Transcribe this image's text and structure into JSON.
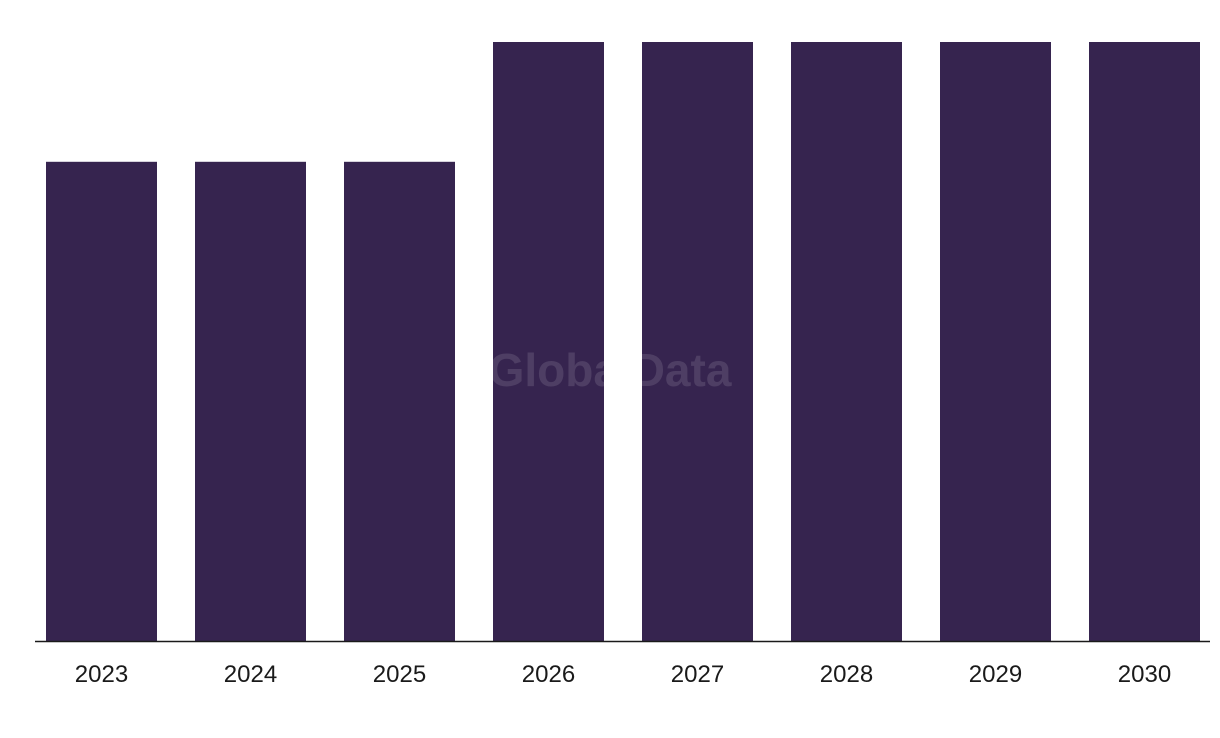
{
  "chart_data": {
    "type": "bar",
    "categories": [
      "2023",
      "2024",
      "2025",
      "2026",
      "2027",
      "2028",
      "2029",
      "2030"
    ],
    "values": [
      4,
      4,
      4,
      5,
      5,
      5,
      5,
      5
    ],
    "ylim": [
      0,
      5
    ],
    "grid": false,
    "bar_color": "#36244f",
    "axis_color": "#1a1a1a",
    "tick_label_color": "#1a1a1a"
  },
  "watermark": {
    "text": "GlobalData",
    "color": "#ffffff",
    "opacity": 0.12
  }
}
